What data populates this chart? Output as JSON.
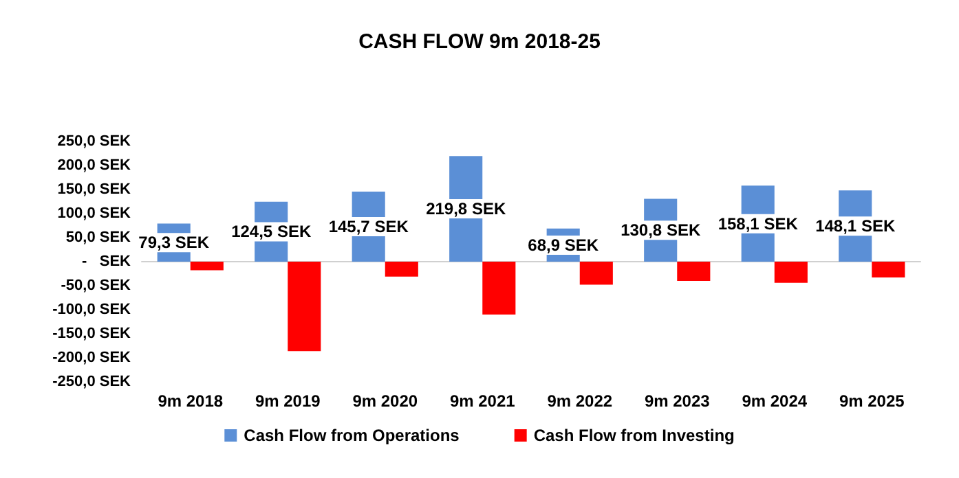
{
  "chart_data": {
    "type": "bar",
    "title": "CASH FLOW 9m 2018-25",
    "categories": [
      "9m 2018",
      "9m 2019",
      "9m 2020",
      "9m 2021",
      "9m 2022",
      "9m 2023",
      "9m 2024",
      "9m 2025"
    ],
    "series": [
      {
        "name": "Cash Flow from Operations",
        "color": "#5b8fd6",
        "values": [
          79.3,
          124.5,
          145.7,
          219.8,
          68.9,
          130.8,
          158.1,
          148.1
        ],
        "value_labels": [
          "79,3 SEK",
          "124,5 SEK",
          "145,7 SEK",
          "219,8 SEK",
          "68,9 SEK",
          "130,8 SEK",
          "158,1 SEK",
          "148,1 SEK"
        ]
      },
      {
        "name": "Cash Flow from Investing",
        "color": "#ff0000",
        "values": [
          -18,
          -186,
          -31,
          -110,
          -48,
          -40,
          -44,
          -33
        ]
      }
    ],
    "ylim": [
      -250,
      250
    ],
    "yticks": [
      {
        "value": 250,
        "label": "250,0 SEK"
      },
      {
        "value": 200,
        "label": "200,0 SEK"
      },
      {
        "value": 150,
        "label": "150,0 SEK"
      },
      {
        "value": 100,
        "label": "100,0 SEK"
      },
      {
        "value": 50,
        "label": "50,0 SEK"
      },
      {
        "value": 0,
        "label": "-   SEK"
      },
      {
        "value": -50,
        "label": "-50,0 SEK"
      },
      {
        "value": -100,
        "label": "-100,0 SEK"
      },
      {
        "value": -150,
        "label": "-150,0 SEK"
      },
      {
        "value": -200,
        "label": "-200,0 SEK"
      },
      {
        "value": -250,
        "label": "-250,0 SEK"
      }
    ],
    "legend": "bottom"
  }
}
